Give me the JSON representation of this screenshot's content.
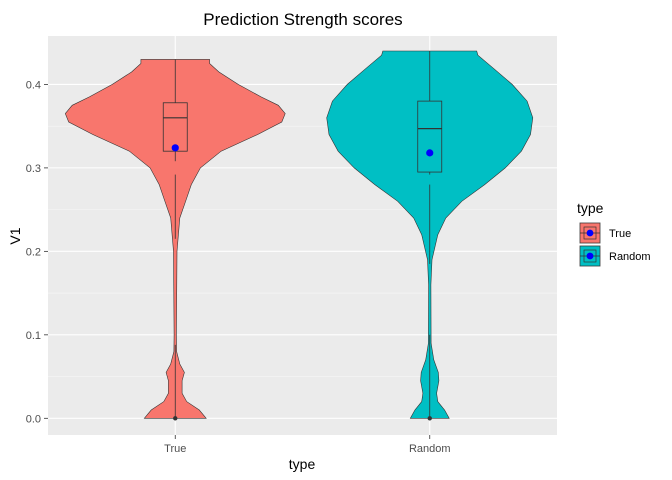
{
  "chart_data": {
    "type": "violin",
    "title": "Prediction Strength scores",
    "xlabel": "type",
    "ylabel": "V1",
    "categories": [
      "True",
      "Random"
    ],
    "ylim": [
      -0.02,
      0.458
    ],
    "yticks": [
      0.0,
      0.1,
      0.2,
      0.3,
      0.4
    ],
    "ytick_labels": [
      "0.0",
      "0.1",
      "0.2",
      "0.3",
      "0.4"
    ],
    "grid": true,
    "legend": {
      "title": "type",
      "position": "right",
      "entries": [
        "True",
        "Random"
      ]
    },
    "series": [
      {
        "name": "True",
        "color": "#F8766D",
        "min": 0.0,
        "max": 0.43,
        "q1": 0.32,
        "median": 0.36,
        "q3": 0.378,
        "whisker_low": 0.308,
        "whisker_high": 0.43,
        "mean": 0.324,
        "outliers": [
          0.0
        ],
        "outlier_range": [
          0.0,
          0.088
        ],
        "lower_whisker_segment": [
          0.215,
          0.292
        ],
        "density_profile": [
          [
            0.0,
            0.27
          ],
          [
            0.01,
            0.21
          ],
          [
            0.02,
            0.1
          ],
          [
            0.03,
            0.06
          ],
          [
            0.045,
            0.06
          ],
          [
            0.055,
            0.08
          ],
          [
            0.065,
            0.04
          ],
          [
            0.08,
            0.012
          ],
          [
            0.1,
            0.01
          ],
          [
            0.2,
            0.015
          ],
          [
            0.24,
            0.04
          ],
          [
            0.26,
            0.09
          ],
          [
            0.28,
            0.14
          ],
          [
            0.3,
            0.22
          ],
          [
            0.32,
            0.4
          ],
          [
            0.34,
            0.72
          ],
          [
            0.355,
            0.93
          ],
          [
            0.365,
            0.96
          ],
          [
            0.375,
            0.9
          ],
          [
            0.385,
            0.75
          ],
          [
            0.4,
            0.55
          ],
          [
            0.415,
            0.38
          ],
          [
            0.425,
            0.3
          ],
          [
            0.43,
            0.3
          ]
        ]
      },
      {
        "name": "Random",
        "color": "#00BFC4",
        "min": 0.0,
        "max": 0.44,
        "q1": 0.295,
        "median": 0.347,
        "q3": 0.38,
        "whisker_low": 0.292,
        "whisker_high": 0.44,
        "mean": 0.318,
        "outliers": [
          0.0
        ],
        "outlier_range": [
          0.0,
          0.1
        ],
        "lower_whisker_segment": [
          0.185,
          0.28
        ],
        "density_profile": [
          [
            0.0,
            0.17
          ],
          [
            0.01,
            0.13
          ],
          [
            0.02,
            0.07
          ],
          [
            0.03,
            0.06
          ],
          [
            0.045,
            0.08
          ],
          [
            0.055,
            0.075
          ],
          [
            0.07,
            0.035
          ],
          [
            0.09,
            0.012
          ],
          [
            0.16,
            0.01
          ],
          [
            0.19,
            0.02
          ],
          [
            0.22,
            0.07
          ],
          [
            0.24,
            0.14
          ],
          [
            0.26,
            0.28
          ],
          [
            0.28,
            0.48
          ],
          [
            0.3,
            0.66
          ],
          [
            0.32,
            0.8
          ],
          [
            0.34,
            0.88
          ],
          [
            0.36,
            0.9
          ],
          [
            0.38,
            0.85
          ],
          [
            0.4,
            0.72
          ],
          [
            0.42,
            0.55
          ],
          [
            0.435,
            0.42
          ],
          [
            0.44,
            0.41
          ]
        ]
      }
    ]
  }
}
